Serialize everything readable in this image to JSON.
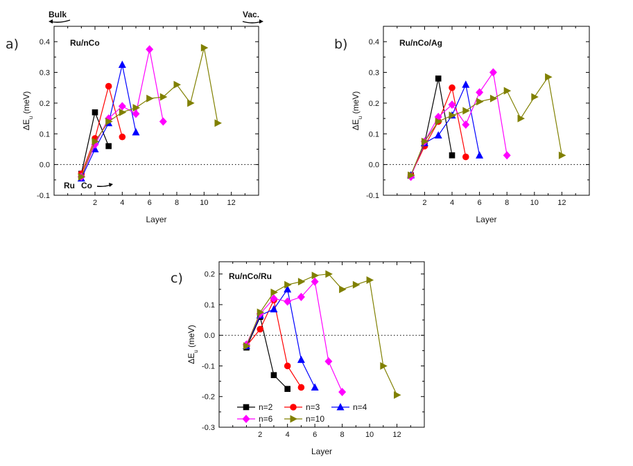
{
  "chart_data": [
    {
      "type": "line",
      "panel_label": "a)",
      "title": "Ru/nCo",
      "xlabel": "Layer",
      "ylabel": "ΔE",
      "ylabel_sub": "u",
      "ylabel_unit": " (meV)",
      "xlim": [
        -1,
        14
      ],
      "ylim": [
        -0.1,
        0.45
      ],
      "xticks": [
        2,
        4,
        6,
        8,
        10,
        12
      ],
      "yticks": [
        -0.1,
        0.0,
        0.1,
        0.2,
        0.3,
        0.4
      ],
      "zero_line": true,
      "annotations": {
        "bulk": "Bulk",
        "vac": "Vac.",
        "ru": "Ru",
        "co": "Co"
      },
      "series": [
        {
          "name": "n=2",
          "color": "#000000",
          "marker": "square",
          "x": [
            1,
            2,
            3
          ],
          "y": [
            -0.03,
            0.17,
            0.06
          ]
        },
        {
          "name": "n=3",
          "color": "#ff0000",
          "marker": "circle",
          "x": [
            1,
            2,
            3,
            4
          ],
          "y": [
            -0.03,
            0.085,
            0.255,
            0.09
          ]
        },
        {
          "name": "n=4",
          "color": "#0000ff",
          "marker": "triangle",
          "x": [
            1,
            2,
            3,
            4,
            5
          ],
          "y": [
            -0.045,
            0.05,
            0.135,
            0.325,
            0.105
          ]
        },
        {
          "name": "n=6",
          "color": "#ff00ff",
          "marker": "diamond",
          "x": [
            1,
            2,
            3,
            4,
            5,
            6,
            7
          ],
          "y": [
            -0.04,
            0.065,
            0.15,
            0.19,
            0.165,
            0.375,
            0.14
          ]
        },
        {
          "name": "n=10",
          "color": "#808000",
          "marker": "triangle-right",
          "x": [
            1,
            2,
            3,
            4,
            5,
            6,
            7,
            8,
            9,
            10,
            11
          ],
          "y": [
            -0.04,
            0.075,
            0.14,
            0.17,
            0.185,
            0.215,
            0.22,
            0.26,
            0.2,
            0.38,
            0.135
          ]
        }
      ]
    },
    {
      "type": "line",
      "panel_label": "b)",
      "title": "Ru/nCo/Ag",
      "xlabel": "Layer",
      "ylabel": "ΔE",
      "ylabel_sub": "u",
      "ylabel_unit": " (meV)",
      "xlim": [
        -1,
        14
      ],
      "ylim": [
        -0.1,
        0.45
      ],
      "xticks": [
        2,
        4,
        6,
        8,
        10,
        12
      ],
      "yticks": [
        -0.1,
        0.0,
        0.1,
        0.2,
        0.3,
        0.4
      ],
      "zero_line": true,
      "series": [
        {
          "name": "n=2",
          "color": "#000000",
          "marker": "square",
          "x": [
            1,
            2,
            3,
            4
          ],
          "y": [
            -0.035,
            0.07,
            0.28,
            0.03
          ]
        },
        {
          "name": "n=3",
          "color": "#ff0000",
          "marker": "circle",
          "x": [
            1,
            2,
            3,
            4,
            5
          ],
          "y": [
            -0.035,
            0.06,
            0.14,
            0.25,
            0.025
          ]
        },
        {
          "name": "n=4",
          "color": "#0000ff",
          "marker": "triangle",
          "x": [
            1,
            2,
            3,
            4,
            5,
            6
          ],
          "y": [
            -0.035,
            0.07,
            0.095,
            0.16,
            0.26,
            0.03
          ]
        },
        {
          "name": "n=6",
          "color": "#ff00ff",
          "marker": "diamond",
          "x": [
            1,
            2,
            3,
            4,
            5,
            6,
            7,
            8
          ],
          "y": [
            -0.04,
            0.075,
            0.155,
            0.195,
            0.13,
            0.235,
            0.3,
            0.03
          ]
        },
        {
          "name": "n=10",
          "color": "#808000",
          "marker": "triangle-right",
          "x": [
            1,
            2,
            3,
            4,
            5,
            6,
            7,
            8,
            9,
            10,
            11,
            12
          ],
          "y": [
            -0.035,
            0.075,
            0.14,
            0.16,
            0.175,
            0.205,
            0.215,
            0.24,
            0.15,
            0.22,
            0.285,
            0.03
          ]
        }
      ]
    },
    {
      "type": "line",
      "panel_label": "c)",
      "title": "Ru/nCo/Ru",
      "xlabel": "Layer",
      "ylabel": "ΔE",
      "ylabel_sub": "u",
      "ylabel_unit": " (meV)",
      "xlim": [
        -1,
        14
      ],
      "ylim": [
        -0.3,
        0.24
      ],
      "xticks": [
        2,
        4,
        6,
        8,
        10,
        12
      ],
      "yticks": [
        -0.3,
        -0.2,
        -0.1,
        0.0,
        0.1,
        0.2
      ],
      "zero_line": true,
      "legend_position": "bottom-left",
      "series": [
        {
          "name": "n=2",
          "color": "#000000",
          "marker": "square",
          "x": [
            1,
            2,
            3,
            4
          ],
          "y": [
            -0.04,
            0.06,
            -0.13,
            -0.175
          ]
        },
        {
          "name": "n=3",
          "color": "#ff0000",
          "marker": "circle",
          "x": [
            1,
            2,
            3,
            4,
            5
          ],
          "y": [
            -0.035,
            0.02,
            0.115,
            -0.1,
            -0.17
          ]
        },
        {
          "name": "n=4",
          "color": "#0000ff",
          "marker": "triangle",
          "x": [
            1,
            2,
            3,
            4,
            5,
            6
          ],
          "y": [
            -0.035,
            0.065,
            0.085,
            0.15,
            -0.08,
            -0.17
          ]
        },
        {
          "name": "n=6",
          "color": "#ff00ff",
          "marker": "diamond",
          "x": [
            1,
            2,
            3,
            4,
            5,
            6,
            7,
            8
          ],
          "y": [
            -0.03,
            0.07,
            0.12,
            0.11,
            0.125,
            0.175,
            -0.085,
            -0.185
          ]
        },
        {
          "name": "n=10",
          "color": "#808000",
          "marker": "triangle-right",
          "x": [
            1,
            2,
            3,
            4,
            5,
            6,
            7,
            8,
            9,
            10,
            11,
            12
          ],
          "y": [
            -0.035,
            0.075,
            0.14,
            0.165,
            0.175,
            0.195,
            0.2,
            0.15,
            0.165,
            0.18,
            -0.1,
            -0.195
          ]
        }
      ]
    }
  ]
}
